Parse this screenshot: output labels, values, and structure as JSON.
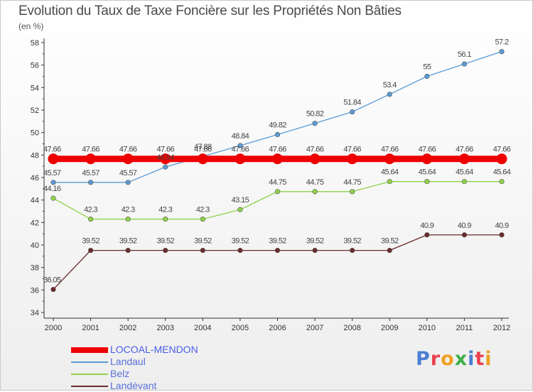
{
  "page": {
    "title": "Evolution du Taux de Taxe Foncière sur les Propriétés Non Bâties",
    "unit": "(en %)"
  },
  "logo": {
    "text": "Proxiti",
    "letter_colors": [
      "#4a7fd4",
      "#e8434f",
      "#f0a020",
      "#3fae49",
      "#4a7fd4",
      "#e8434f",
      "#f0a020"
    ]
  },
  "chart_data": {
    "type": "line",
    "title": "Evolution du Taux de Taxe Foncière sur les Propriétés Non Bâties",
    "xlabel": "",
    "ylabel": "(en %)",
    "x": [
      "2000",
      "2001",
      "2002",
      "2003",
      "2004",
      "2005",
      "2006",
      "2007",
      "2008",
      "2009",
      "2010",
      "2011",
      "2012"
    ],
    "ylim": [
      34,
      58
    ],
    "yticks": [
      34,
      36,
      38,
      40,
      42,
      44,
      46,
      48,
      50,
      52,
      54,
      56,
      58
    ],
    "grid": false,
    "legend_position": "bottom-left",
    "series": [
      {
        "name": "LOCOAL-MENDON",
        "color": "#ee0000",
        "values": [
          47.66,
          47.66,
          47.66,
          47.66,
          47.66,
          47.66,
          47.66,
          47.66,
          47.66,
          47.66,
          47.66,
          47.66,
          47.66
        ],
        "labels": [
          "47.66",
          "47.66",
          "47.66",
          "47.66",
          "47.66",
          "47.66",
          "47.66",
          "47.66",
          "47.66",
          "47.66",
          "47.66",
          "47.66",
          "47.66"
        ]
      },
      {
        "name": "Landaul",
        "color": "#5b9bd5",
        "values": [
          45.57,
          45.57,
          45.57,
          46.94,
          47.88,
          48.84,
          49.82,
          50.82,
          51.84,
          53.4,
          55,
          56.1,
          57.2
        ],
        "labels": [
          "45.57",
          "45.57",
          "45.57",
          "46.94",
          "47.88",
          "48.84",
          "49.82",
          "50.82",
          "51.84",
          "53.4",
          "55",
          "56.1",
          "57.2"
        ]
      },
      {
        "name": "Belz",
        "color": "#8fd24a",
        "values": [
          44.16,
          42.3,
          42.3,
          42.3,
          42.3,
          43.15,
          44.75,
          44.75,
          44.75,
          45.64,
          45.64,
          45.64,
          45.64
        ],
        "labels": [
          "44.16",
          "42.3",
          "42.3",
          "42.3",
          "42.3",
          "43.15",
          "44.75",
          "44.75",
          "44.75",
          "45.64",
          "45.64",
          "45.64",
          "45.64"
        ]
      },
      {
        "name": "Landévant",
        "color": "#6b2a2a",
        "values": [
          36.05,
          39.52,
          39.52,
          39.52,
          39.52,
          39.52,
          39.52,
          39.52,
          39.52,
          39.52,
          40.9,
          40.9,
          40.9
        ],
        "labels": [
          "36.05",
          "39.52",
          "39.52",
          "39.52",
          "39.52",
          "39.52",
          "39.52",
          "39.52",
          "39.52",
          "39.52",
          "40.9",
          "40.9",
          "40.9"
        ]
      }
    ]
  }
}
